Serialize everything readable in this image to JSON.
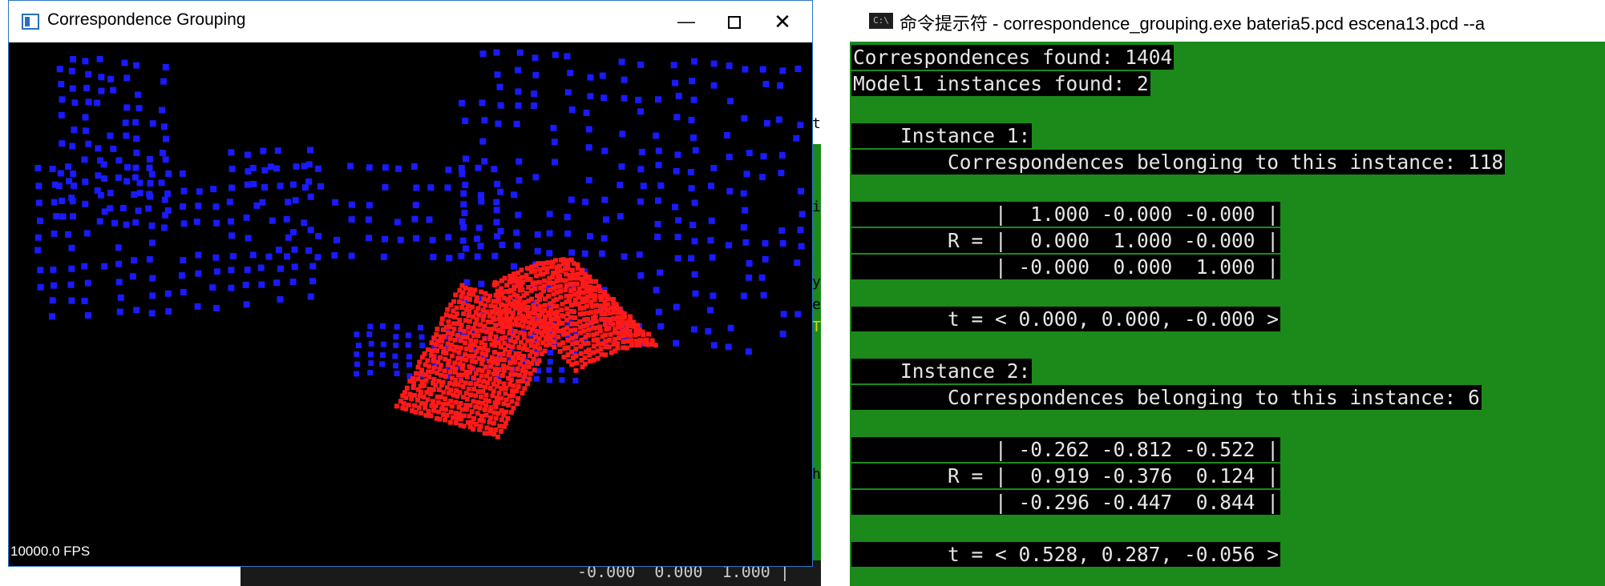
{
  "viewer": {
    "title": "Correspondence Grouping",
    "minimize_glyph": "—",
    "close_glyph": "✕",
    "fps": "10000.0 FPS",
    "scene_color": "#1a1aff",
    "model_color": "#ff1a1a"
  },
  "background": {
    "frag_t": "t",
    "frag_i": "i",
    "frag_y": "y",
    "frag_e": "e",
    "frag_T": "T",
    "frag_h": "h",
    "bottom_text": "-0.000  0.000  1.000 |"
  },
  "console": {
    "icon_label": "C:\\",
    "title": "命令提示符 - correspondence_grouping.exe  bateria5.pcd escena13.pcd --a",
    "lines": [
      "Correspondences found: 1404",
      "Model1 instances found: 2",
      "",
      "    Instance 1:",
      "        Correspondences belonging to this instance: 118",
      "",
      "            |  1.000 -0.000 -0.000 |",
      "        R = |  0.000  1.000 -0.000 |",
      "            | -0.000  0.000  1.000 |",
      "",
      "        t = < 0.000, 0.000, -0.000 >",
      "",
      "    Instance 2:",
      "        Correspondences belonging to this instance: 6",
      "",
      "            | -0.262 -0.812 -0.522 |",
      "        R = |  0.919 -0.376  0.124 |",
      "            | -0.296 -0.447  0.844 |",
      "",
      "        t = < 0.528, 0.287, -0.056 >"
    ]
  }
}
